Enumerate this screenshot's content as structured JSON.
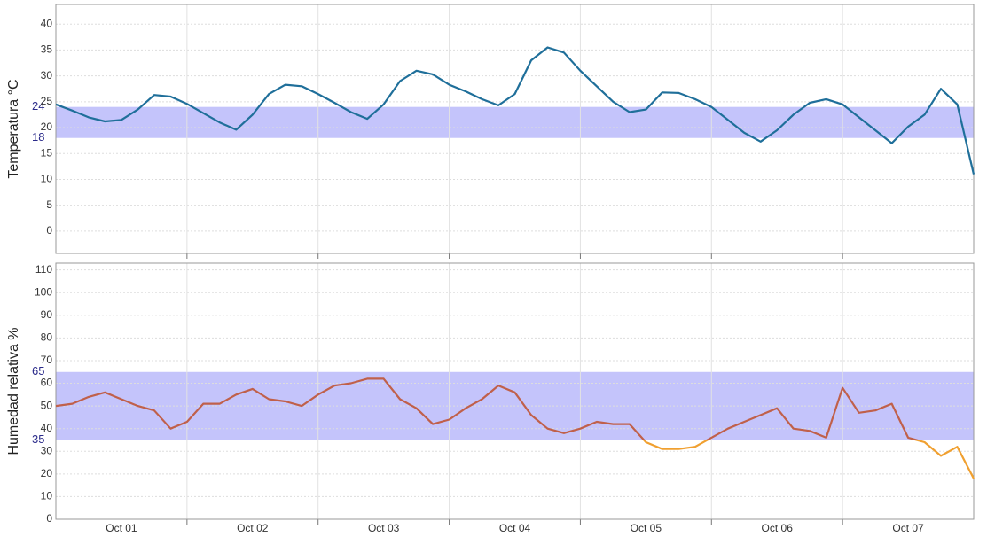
{
  "chart_data": [
    {
      "type": "line",
      "ylabel": "Temperatura °C",
      "x": [
        0,
        0.125,
        0.25,
        0.375,
        0.5,
        0.625,
        0.75,
        0.875,
        1,
        1.125,
        1.25,
        1.375,
        1.5,
        1.625,
        1.75,
        1.875,
        2,
        2.125,
        2.25,
        2.375,
        2.5,
        2.625,
        2.75,
        2.875,
        3,
        3.125,
        3.25,
        3.375,
        3.5,
        3.625,
        3.75,
        3.875,
        4,
        4.125,
        4.25,
        4.375,
        4.5,
        4.625,
        4.75,
        4.875,
        5,
        5.125,
        5.25,
        5.375,
        5.5,
        5.625,
        5.75,
        5.875,
        6,
        6.125,
        6.25,
        6.375,
        6.5,
        6.625,
        6.75,
        6.875,
        7
      ],
      "series": [
        {
          "color": "#1f6f9a",
          "values": [
            24.5,
            23.3,
            22,
            21.2,
            21.5,
            23.5,
            26.3,
            26,
            24.6,
            22.8,
            21,
            19.6,
            22.5,
            26.5,
            28.3,
            28,
            26.5,
            24.8,
            23,
            21.7,
            24.5,
            29,
            31,
            30.3,
            28.3,
            27,
            25.5,
            24.3,
            26.5,
            33,
            35.5,
            34.5,
            31,
            28,
            25,
            23,
            23.5,
            26.8,
            26.7,
            25.5,
            24,
            21.5,
            19,
            17.3,
            19.5,
            22.5,
            24.8,
            25.5,
            24.5,
            22,
            19.5,
            17,
            20.2,
            22.5,
            27.5,
            24.5,
            11
          ]
        }
      ],
      "band": {
        "from": 18,
        "to": 24,
        "color": "#c4c4fb"
      },
      "xlim": [
        0,
        7
      ],
      "xminorticks": [
        1,
        2,
        3,
        4,
        5,
        6
      ],
      "ylim": [
        -4.3,
        43.8
      ],
      "yticks": [
        0,
        5,
        10,
        15,
        20,
        25,
        30,
        35,
        40
      ],
      "grid": true
    },
    {
      "type": "line",
      "ylabel": "Humedad relativa %",
      "x": [
        0,
        0.125,
        0.25,
        0.375,
        0.5,
        0.625,
        0.75,
        0.875,
        1,
        1.125,
        1.25,
        1.375,
        1.5,
        1.625,
        1.75,
        1.875,
        2,
        2.125,
        2.25,
        2.375,
        2.5,
        2.625,
        2.75,
        2.875,
        3,
        3.125,
        3.25,
        3.375,
        3.5,
        3.625,
        3.75,
        3.875,
        4,
        4.125,
        4.25,
        4.375,
        4.5,
        4.625,
        4.75,
        4.875,
        5,
        5.125,
        5.25,
        5.375,
        5.5,
        5.625,
        5.75,
        5.875,
        6,
        6.125,
        6.25,
        6.375,
        6.5,
        6.625,
        6.75,
        6.875,
        7
      ],
      "series": [
        {
          "color": "#c0604a",
          "color_below_band": "#f0a030",
          "values": [
            50,
            51,
            54,
            56,
            53,
            50,
            48,
            40,
            43,
            51,
            51,
            55,
            57.5,
            53,
            52,
            50,
            55,
            59,
            60,
            62,
            62,
            53,
            49,
            42,
            44,
            49,
            53,
            59,
            56,
            46,
            40,
            38,
            40,
            43,
            42,
            42,
            34,
            31,
            31,
            32,
            36,
            40,
            43,
            46,
            49,
            40,
            39,
            36,
            58,
            47,
            48,
            51,
            36,
            34,
            28,
            32,
            18
          ]
        }
      ],
      "band": {
        "from": 35,
        "to": 65,
        "color": "#c4c4fb"
      },
      "xlim": [
        0,
        7
      ],
      "xminorticks": [
        1,
        2,
        3,
        4,
        5,
        6
      ],
      "xticks": [
        {
          "value": 0.5,
          "label": "Oct 01"
        },
        {
          "value": 1.5,
          "label": "Oct 02"
        },
        {
          "value": 2.5,
          "label": "Oct 03"
        },
        {
          "value": 3.5,
          "label": "Oct 04"
        },
        {
          "value": 4.5,
          "label": "Oct 05"
        },
        {
          "value": 5.5,
          "label": "Oct 06"
        },
        {
          "value": 6.5,
          "label": "Oct 07"
        }
      ],
      "ylim": [
        0,
        113
      ],
      "yticks": [
        0,
        10,
        20,
        30,
        40,
        50,
        60,
        70,
        80,
        90,
        100,
        110
      ],
      "grid": true
    }
  ]
}
